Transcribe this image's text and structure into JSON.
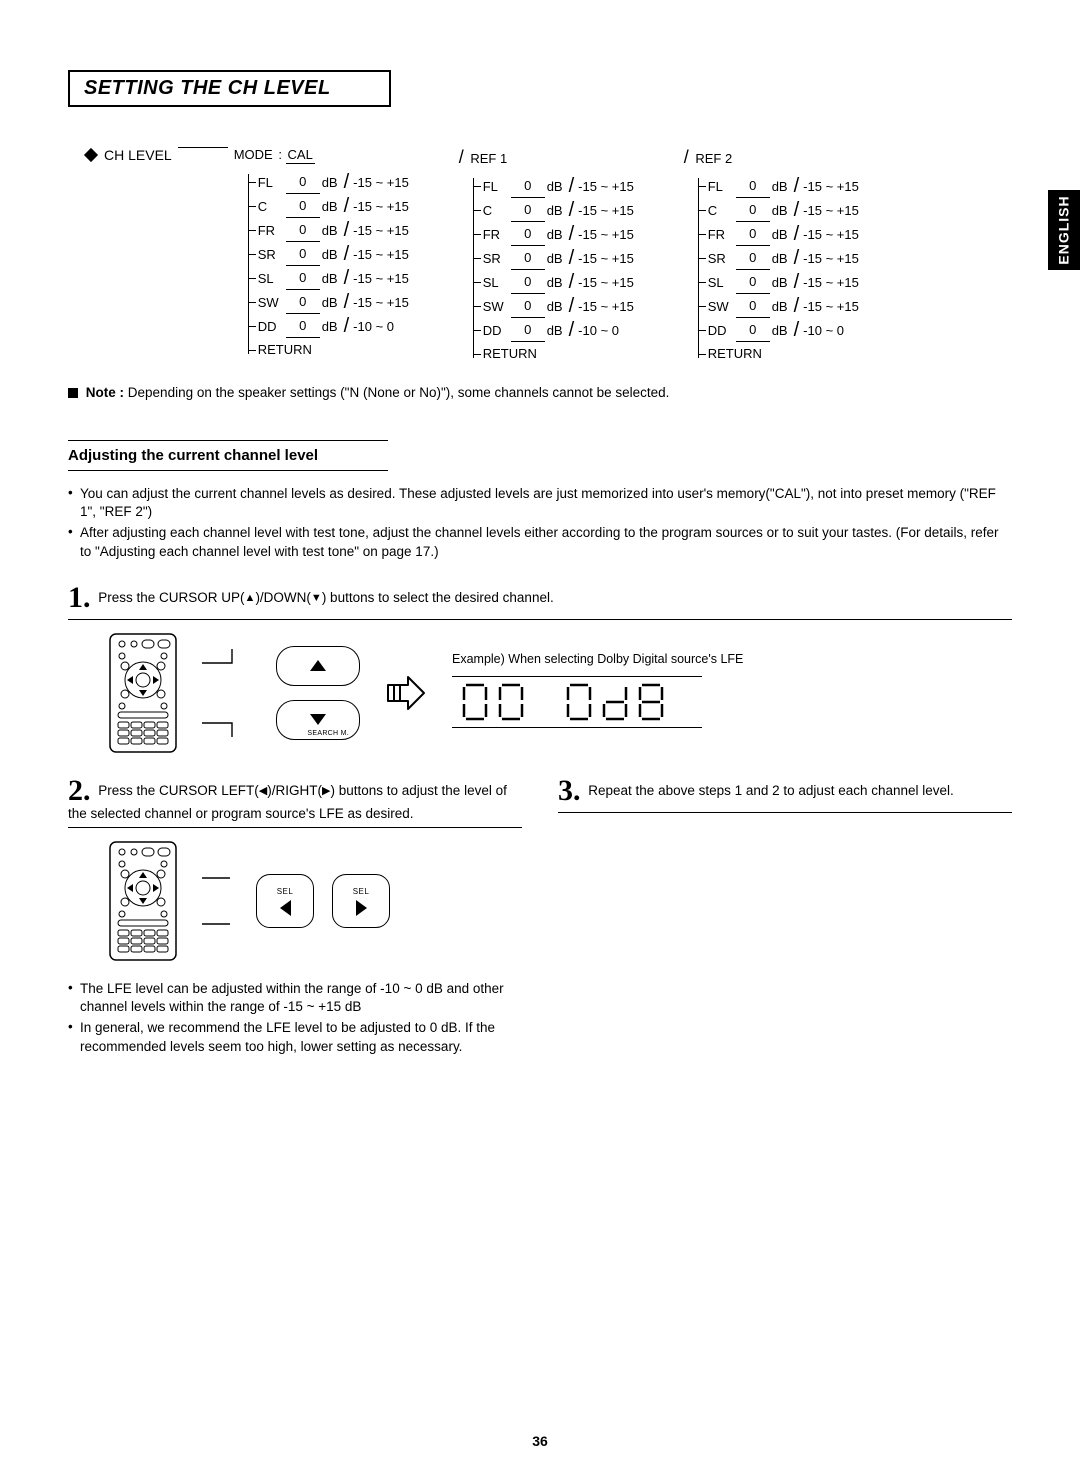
{
  "langTab": "ENGLISH",
  "title": "SETTING THE CH LEVEL",
  "root": "CH LEVEL",
  "modeLabel": "MODE",
  "modes": [
    {
      "name": "CAL",
      "slash": false
    },
    {
      "name": "REF 1",
      "slash": true
    },
    {
      "name": "REF 2",
      "slash": true
    }
  ],
  "channels": [
    {
      "ch": "FL",
      "val": "0",
      "unit": "dB",
      "range": "-15 ~ +15"
    },
    {
      "ch": "C",
      "val": "0",
      "unit": "dB",
      "range": "-15 ~ +15"
    },
    {
      "ch": "FR",
      "val": "0",
      "unit": "dB",
      "range": "-15 ~ +15"
    },
    {
      "ch": "SR",
      "val": "0",
      "unit": "dB",
      "range": "-15 ~ +15"
    },
    {
      "ch": "SL",
      "val": "0",
      "unit": "dB",
      "range": "-15 ~ +15"
    },
    {
      "ch": "SW",
      "val": "0",
      "unit": "dB",
      "range": "-15 ~ +15"
    },
    {
      "ch": "DD",
      "val": "0",
      "unit": "dB",
      "range": "-10 ~ 0"
    }
  ],
  "returnLabel": "RETURN",
  "noteLabel": "Note :",
  "noteText": "Depending on the speaker settings (\"N (None or No)\"), some channels cannot be selected.",
  "sectionHead": "Adjusting the current channel level",
  "introBullets": [
    "You can adjust the current channel levels as desired. These adjusted levels are just memorized into user's memory(\"CAL\"), not into preset memory (\"REF 1\", \"REF 2\")",
    "After adjusting each channel level with test tone, adjust the channel levels either according to the program sources or to suit your tastes. (For details, refer to \"Adjusting each channel level with test tone\" on page 17.)"
  ],
  "step1_pre": "Press the CURSOR UP(",
  "step1_mid": ")/DOWN(",
  "step1_post": ") buttons to select the desired channel.",
  "searchM": "SEARCH M.",
  "selLabel": "SEL",
  "exampleCaption": "Example) When selecting Dolby Digital source's LFE",
  "segLeft": "DD",
  "segRight": "0dB",
  "step2_pre": "Press the CURSOR LEFT(",
  "step2_mid": ")/RIGHT(",
  "step2_post": ") buttons to adjust the level of the selected channel or  program source's LFE as desired.",
  "step3": "Repeat the above steps 1 and 2 to adjust each channel level.",
  "lowerBullets": [
    "The LFE level can be adjusted within the range of -10 ~ 0 dB and other channel levels within the range of -15 ~ +15 dB",
    "In general, we recommend the LFE level to be adjusted to 0 dB. If the recommended levels seem too high, lower setting as necessary."
  ],
  "pageNum": "36"
}
